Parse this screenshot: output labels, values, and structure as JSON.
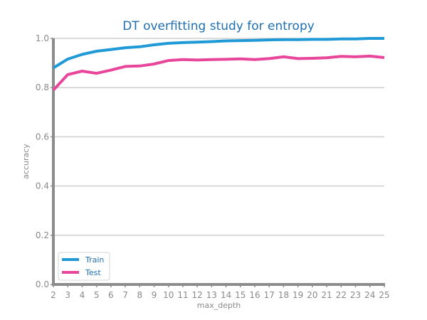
{
  "chart_data": {
    "type": "line",
    "title": "DT overfitting study for entropy",
    "xlabel": "max_depth",
    "ylabel": "accuracy",
    "x": [
      2,
      3,
      4,
      5,
      6,
      7,
      8,
      9,
      10,
      11,
      12,
      13,
      14,
      15,
      16,
      17,
      18,
      19,
      20,
      21,
      22,
      23,
      24,
      25
    ],
    "xlim": [
      2,
      25
    ],
    "ylim": [
      0,
      1.0
    ],
    "yticks": [
      "0.0",
      "0.2",
      "0.4",
      "0.6",
      "0.8",
      "1.0"
    ],
    "grid": "horizontal",
    "legend_position": "lower-left",
    "series": [
      {
        "name": "Train",
        "color": "#1f9ad6",
        "values": [
          0.88,
          0.916,
          0.935,
          0.948,
          0.955,
          0.962,
          0.966,
          0.974,
          0.98,
          0.983,
          0.985,
          0.987,
          0.99,
          0.991,
          0.992,
          0.994,
          0.995,
          0.995,
          0.996,
          0.996,
          0.998,
          0.998,
          1.0,
          1.0
        ]
      },
      {
        "name": "Test",
        "color": "#e8469a",
        "values": [
          0.79,
          0.853,
          0.867,
          0.858,
          0.871,
          0.886,
          0.888,
          0.896,
          0.91,
          0.914,
          0.912,
          0.914,
          0.915,
          0.917,
          0.914,
          0.918,
          0.925,
          0.918,
          0.919,
          0.921,
          0.927,
          0.925,
          0.928,
          0.922
        ]
      }
    ]
  }
}
